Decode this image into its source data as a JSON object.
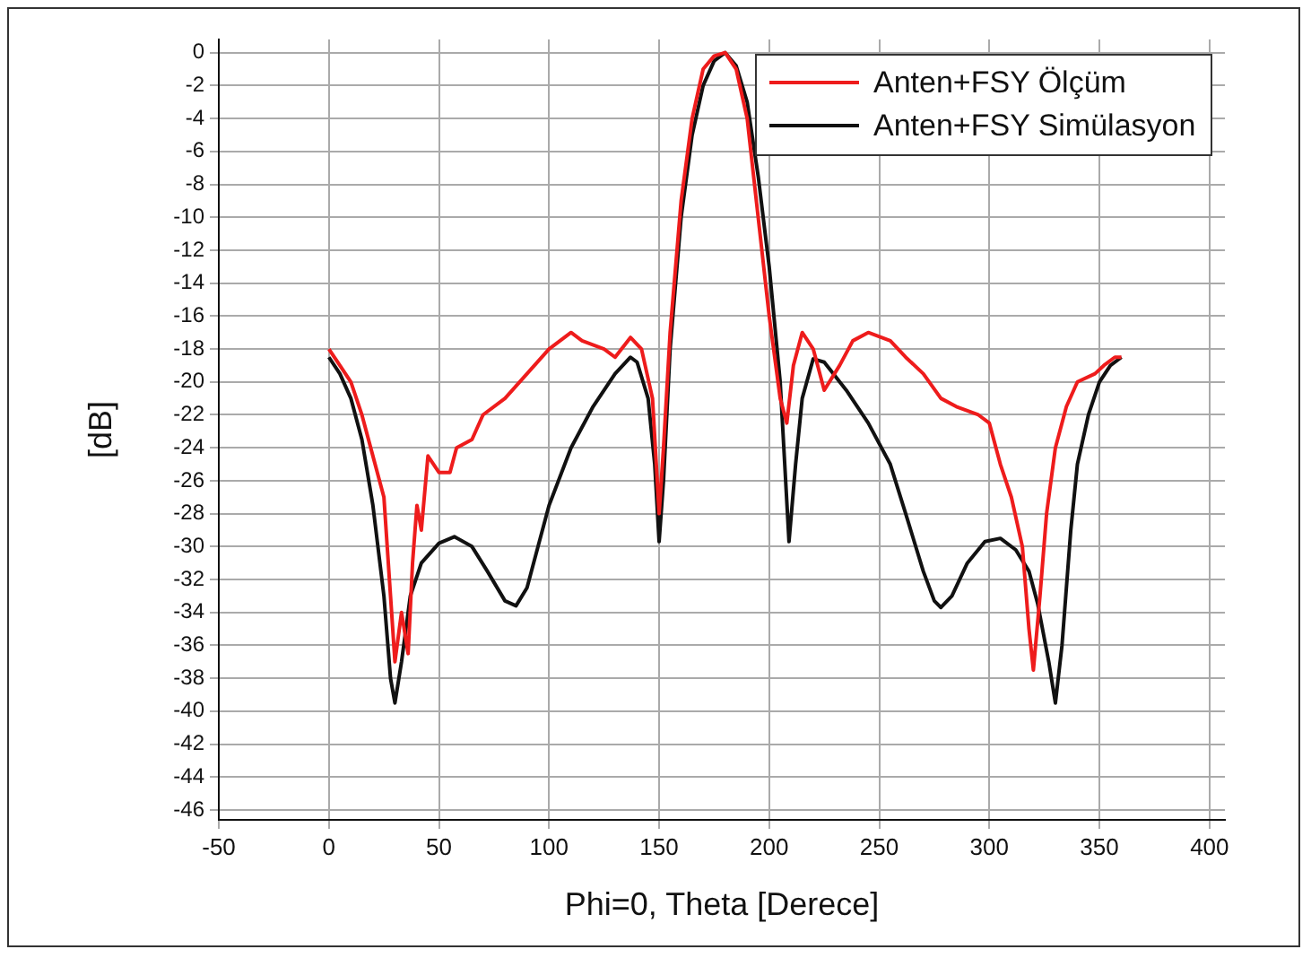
{
  "chart_data": {
    "type": "line",
    "xlabel": "Phi=0, Theta [Derece]",
    "ylabel": "[dB]",
    "xlim": [
      -50,
      407
    ],
    "ylim": [
      -46.6,
      0.8
    ],
    "xticks": [
      -50,
      0,
      50,
      100,
      150,
      200,
      250,
      300,
      350,
      400
    ],
    "yticks": [
      0,
      -2,
      -4,
      -6,
      -8,
      -10,
      -12,
      -14,
      -16,
      -18,
      -20,
      -22,
      -24,
      -26,
      -28,
      -30,
      -32,
      -34,
      -36,
      -38,
      -40,
      -42,
      -44,
      -46
    ],
    "grid": true,
    "legend": "top right",
    "marker": "none",
    "line_style": "solid",
    "series": [
      {
        "name": "Anten+FSY Ölçüm",
        "color": "#ee1c1c",
        "x": [
          0,
          5,
          10,
          15,
          20,
          25,
          28,
          30,
          33,
          36,
          38,
          40,
          42,
          45,
          50,
          55,
          58,
          65,
          70,
          80,
          90,
          100,
          110,
          115,
          125,
          130,
          137,
          142,
          147,
          150,
          152,
          155,
          160,
          165,
          170,
          175,
          180,
          185,
          190,
          195,
          200,
          205,
          208,
          211,
          215,
          220,
          225,
          232,
          238,
          245,
          255,
          262,
          270,
          278,
          285,
          295,
          300,
          305,
          310,
          315,
          318,
          320,
          323,
          326,
          330,
          335,
          340,
          348,
          352,
          357,
          360
        ],
        "values": [
          -18,
          -19,
          -20,
          -22,
          -24.5,
          -27,
          -33,
          -37,
          -34,
          -36.5,
          -31,
          -27.5,
          -29,
          -24.5,
          -25.5,
          -25.5,
          -24,
          -23.5,
          -22,
          -21,
          -19.5,
          -18,
          -17,
          -17.5,
          -18,
          -18.5,
          -17.3,
          -18,
          -21,
          -28,
          -24,
          -17,
          -9,
          -4,
          -1,
          -0.2,
          0,
          -1,
          -4,
          -10,
          -16,
          -21,
          -22.5,
          -19,
          -17,
          -18,
          -20.5,
          -19,
          -17.5,
          -17,
          -17.5,
          -18.5,
          -19.5,
          -21,
          -21.5,
          -22,
          -22.5,
          -25,
          -27,
          -30,
          -35,
          -37.5,
          -33,
          -28,
          -24,
          -21.5,
          -20,
          -19.5,
          -19,
          -18.5,
          -18.5
        ]
      },
      {
        "name": "Anten+FSY Simülasyon",
        "color": "#111111",
        "x": [
          0,
          5,
          10,
          15,
          20,
          25,
          28,
          30,
          33,
          37,
          42,
          50,
          57,
          65,
          72,
          80,
          85,
          90,
          95,
          100,
          110,
          120,
          130,
          137,
          140,
          145,
          148,
          150,
          152,
          155,
          160,
          165,
          170,
          175,
          180,
          185,
          190,
          195,
          200,
          205,
          209,
          212,
          215,
          220,
          225,
          235,
          245,
          255,
          262,
          270,
          275,
          278,
          283,
          290,
          298,
          305,
          312,
          318,
          322,
          327,
          330,
          333,
          337,
          340,
          345,
          350,
          355,
          360
        ],
        "values": [
          -18.5,
          -19.5,
          -21,
          -23.5,
          -27.5,
          -33,
          -38,
          -39.5,
          -37,
          -33,
          -31,
          -29.8,
          -29.4,
          -30,
          -31.5,
          -33.3,
          -33.6,
          -32.5,
          -30,
          -27.5,
          -24,
          -21.5,
          -19.5,
          -18.5,
          -18.8,
          -21,
          -25,
          -29.7,
          -26,
          -18,
          -10,
          -5,
          -2,
          -0.5,
          0,
          -0.8,
          -3,
          -7.5,
          -13,
          -20,
          -29.7,
          -25,
          -21,
          -18.6,
          -18.8,
          -20.5,
          -22.5,
          -25,
          -28,
          -31.5,
          -33.3,
          -33.7,
          -33,
          -31,
          -29.7,
          -29.5,
          -30.2,
          -31.5,
          -33.5,
          -37,
          -39.5,
          -36,
          -29,
          -25,
          -22,
          -20,
          -19,
          -18.5
        ]
      }
    ]
  }
}
